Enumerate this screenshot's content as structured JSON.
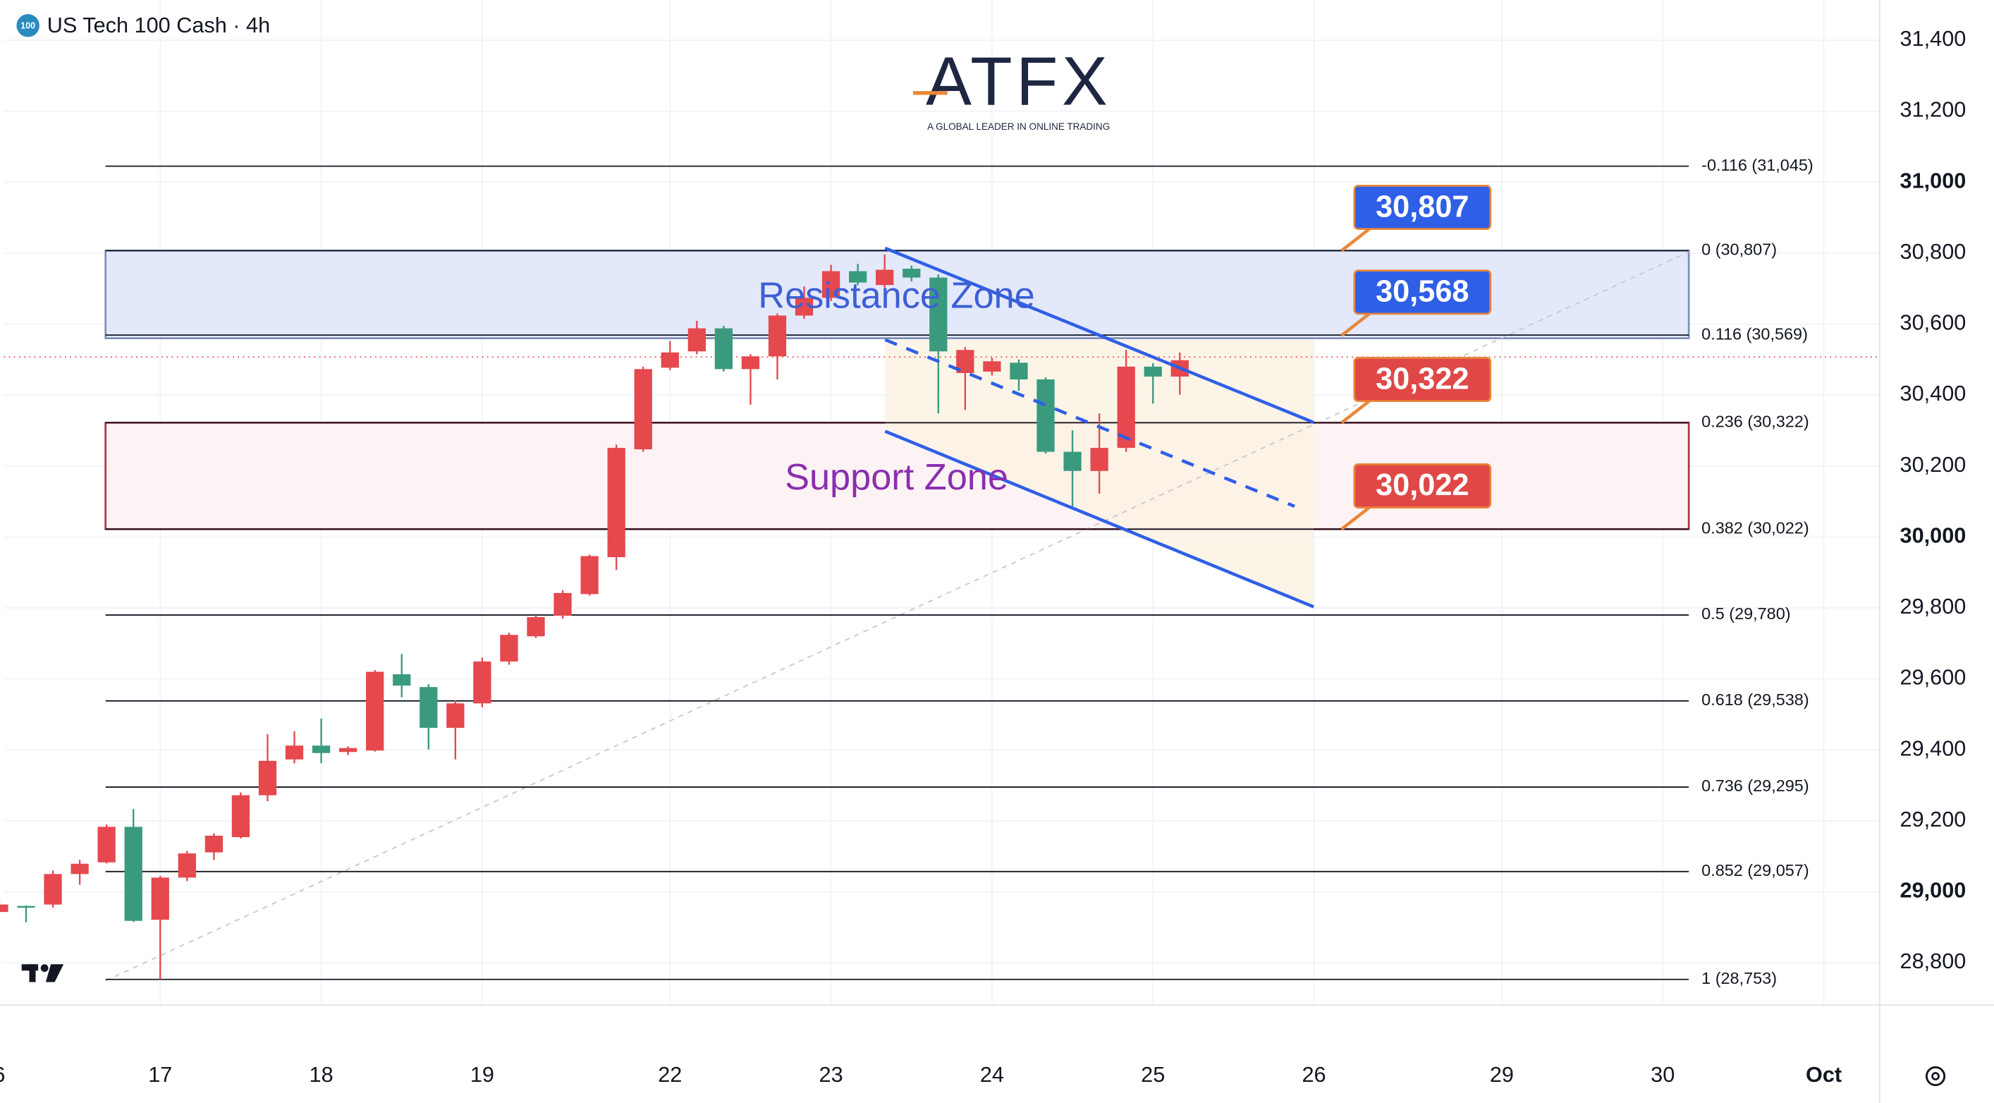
{
  "header": {
    "badge": "100",
    "title": "US Tech 100 Cash · 4h"
  },
  "logo": {
    "name": "ATFX",
    "tagline": "A GLOBAL LEADER IN ONLINE TRADING"
  },
  "chart_data": {
    "type": "candlestick",
    "x": [
      -6,
      -5,
      -4,
      -3,
      -2,
      -1,
      0,
      1,
      2,
      3,
      4,
      5,
      6,
      7,
      8,
      9,
      10,
      11,
      12,
      13,
      14,
      15,
      16,
      17,
      18,
      19,
      20,
      21,
      22,
      23,
      24,
      25,
      26,
      27,
      28,
      29,
      30,
      31,
      32,
      33,
      34,
      35,
      36,
      37,
      38
    ],
    "open": [
      28943,
      28960,
      28964,
      29050,
      29083,
      29183,
      28921,
      29040,
      29111,
      29154,
      29272,
      29373,
      29412,
      29394,
      29398,
      29613,
      29577,
      29462,
      29531,
      29649,
      29720,
      29778,
      29839,
      29943,
      30247,
      30477,
      30523,
      30588,
      30473,
      30509,
      30624,
      30674,
      30749,
      30710,
      30756,
      30731,
      30462,
      30466,
      30491,
      30444,
      30240,
      30186,
      30251,
      30480,
      30452
    ],
    "high": [
      28975,
      28961,
      29060,
      29090,
      29190,
      29233,
      29045,
      29115,
      29165,
      29280,
      29444,
      29452,
      29488,
      29410,
      29625,
      29670,
      29585,
      29540,
      29660,
      29730,
      29780,
      29850,
      29950,
      30260,
      30480,
      30552,
      30609,
      30595,
      30515,
      30630,
      30706,
      30767,
      30770,
      30796,
      30765,
      30740,
      30535,
      30505,
      30500,
      30450,
      30300,
      30348,
      30527,
      30490,
      30520
    ],
    "low": [
      28935,
      28914,
      28955,
      29020,
      29080,
      28915,
      28753,
      29030,
      29090,
      29150,
      29255,
      29362,
      29362,
      29385,
      29395,
      29548,
      29401,
      29373,
      29520,
      29640,
      29715,
      29770,
      29835,
      29907,
      30240,
      30470,
      30515,
      30466,
      30373,
      30444,
      30615,
      30665,
      30710,
      30700,
      30720,
      30348,
      30358,
      30455,
      30412,
      30235,
      30086,
      30122,
      30240,
      30376,
      30401
    ],
    "close": [
      28964,
      28955,
      29050,
      29079,
      29183,
      28918,
      29040,
      29108,
      29158,
      29272,
      29369,
      29412,
      29391,
      29405,
      29620,
      29581,
      29462,
      29531,
      29649,
      29724,
      29774,
      29842,
      29946,
      30251,
      30473,
      30520,
      30588,
      30473,
      30509,
      30624,
      30674,
      30749,
      30717,
      30753,
      30731,
      30523,
      30527,
      30495,
      30444,
      30240,
      30186,
      30251,
      30480,
      30452,
      30498
    ],
    "up_color": "#e5484d",
    "down_color": "#3a9a7e",
    "xlim": [
      -5.83,
      64.08
    ],
    "xticks": [
      {
        "value": -6,
        "label": "6"
      },
      {
        "value": 0,
        "label": "17"
      },
      {
        "value": 6,
        "label": "18"
      },
      {
        "value": 12,
        "label": "19"
      },
      {
        "value": 19,
        "label": "22"
      },
      {
        "value": 25,
        "label": "23"
      },
      {
        "value": 31,
        "label": "24"
      },
      {
        "value": 37,
        "label": "25"
      },
      {
        "value": 43,
        "label": "26"
      },
      {
        "value": 50,
        "label": "29"
      },
      {
        "value": 56,
        "label": "30"
      },
      {
        "value": 62,
        "label": "Oct"
      }
    ],
    "ylim": [
      28681,
      31513
    ],
    "yticks": [
      {
        "value": 28800,
        "label": "28,800"
      },
      {
        "value": 29000,
        "label": "29,000"
      },
      {
        "value": 29200,
        "label": "29,200"
      },
      {
        "value": 29400,
        "label": "29,400"
      },
      {
        "value": 29600,
        "label": "29,600"
      },
      {
        "value": 29800,
        "label": "29,800"
      },
      {
        "value": 30000,
        "label": "30,000"
      },
      {
        "value": 30200,
        "label": "30,200"
      },
      {
        "value": 30400,
        "label": "30,400"
      },
      {
        "value": 30600,
        "label": "30,600"
      },
      {
        "value": 30800,
        "label": "30,800"
      },
      {
        "value": 31000,
        "label": "31,000"
      },
      {
        "value": 31200,
        "label": "31,200"
      },
      {
        "value": 31400,
        "label": "31,400"
      }
    ],
    "grid": true,
    "fib_levels": [
      {
        "value": 31045,
        "label": "-0.116 (31,045)"
      },
      {
        "value": 30807,
        "label": "0 (30,807)"
      },
      {
        "value": 30569,
        "label": "0.116 (30,569)"
      },
      {
        "value": 30322,
        "label": "0.236 (30,322)"
      },
      {
        "value": 30022,
        "label": "0.382 (30,022)"
      },
      {
        "value": 29780,
        "label": "0.5 (29,780)"
      },
      {
        "value": 29538,
        "label": "0.618 (29,538)"
      },
      {
        "value": 29295,
        "label": "0.736 (29,295)"
      },
      {
        "value": 29057,
        "label": "0.852 (29,057)"
      },
      {
        "value": 28753,
        "label": "1 (28,753)"
      }
    ],
    "zones": [
      {
        "name": "Resistance Zone",
        "from": 30560,
        "to": 30807,
        "fill": "#e3e9fb",
        "stroke": "#7f8fb8",
        "color": "#3d5fd6"
      },
      {
        "name": "Support Zone",
        "from": 30022,
        "to": 30322,
        "fill": "#fdf3f5",
        "stroke": "#b0304a",
        "color": "#8a2fb0"
      }
    ],
    "price_tags": [
      {
        "value": 30807,
        "label": "30,807",
        "color": "#2f5fe6"
      },
      {
        "value": 30568,
        "label": "30,568",
        "color": "#2f5fe6"
      },
      {
        "value": 30322,
        "label": "30,322",
        "color": "#e04848"
      },
      {
        "value": 30022,
        "label": "30,022",
        "color": "#e04848"
      }
    ],
    "last_price": 30507
  }
}
